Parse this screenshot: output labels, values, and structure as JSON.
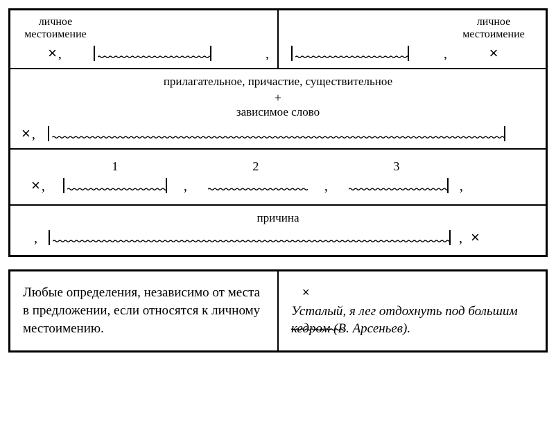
{
  "labels": {
    "pronoun": "личное\nместоимение",
    "adj_line": "прилагательное, причастие, существительное",
    "plus": "+",
    "dep_word": "зависимое слово",
    "n1": "1",
    "n2": "2",
    "n3": "3",
    "reason": "причина",
    "x": "×",
    "comma": ","
  },
  "bottom": {
    "left": "Любые определения, не­зависимо от места в пред­ложении, если относятся к личному местоимению.",
    "right_x": "×",
    "right_word": "Усталый",
    "right_rest": ", я лег отдохнуть под большим кедром (В. Арсеньев).",
    "right_comma_after": ""
  },
  "style": {
    "stroke": "#000",
    "wave_amp": 2.2,
    "wave_period": 8
  }
}
